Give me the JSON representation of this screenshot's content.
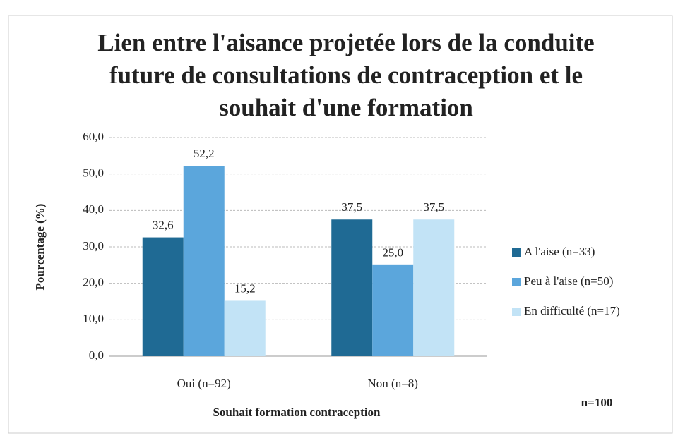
{
  "chart_data": {
    "type": "bar",
    "title": "Lien entre l'aisance projetée lors de la conduite future de consultations de contraception et le souhait d'une formation",
    "x_label": "Souhait formation contraception",
    "y_label": "Pourcentage (%)",
    "annotation": "n=100",
    "categories": [
      "Oui (n=92)",
      "Non (n=8)"
    ],
    "series": [
      {
        "name": "A l'aise (n=33)",
        "color": "#1f6a94",
        "values": [
          32.6,
          37.5
        ],
        "value_labels": [
          "32,6",
          "37,5"
        ]
      },
      {
        "name": "Peu à l'aise (n=50)",
        "color": "#5ba6dc",
        "values": [
          52.2,
          25.0
        ],
        "value_labels": [
          "52,2",
          "25,0"
        ]
      },
      {
        "name": "En difficulté (n=17)",
        "color": "#c2e3f6",
        "values": [
          15.2,
          37.5
        ],
        "value_labels": [
          "15,2",
          "37,5"
        ]
      }
    ],
    "ylim": [
      0,
      60
    ],
    "yticks": [
      {
        "value": 0,
        "label": "0,0"
      },
      {
        "value": 10,
        "label": "10,0"
      },
      {
        "value": 20,
        "label": "20,0"
      },
      {
        "value": 30,
        "label": "30,0"
      },
      {
        "value": 40,
        "label": "40,0"
      },
      {
        "value": 50,
        "label": "50,0"
      },
      {
        "value": 60,
        "label": "60,0"
      }
    ],
    "grid": true,
    "legend": "right"
  }
}
